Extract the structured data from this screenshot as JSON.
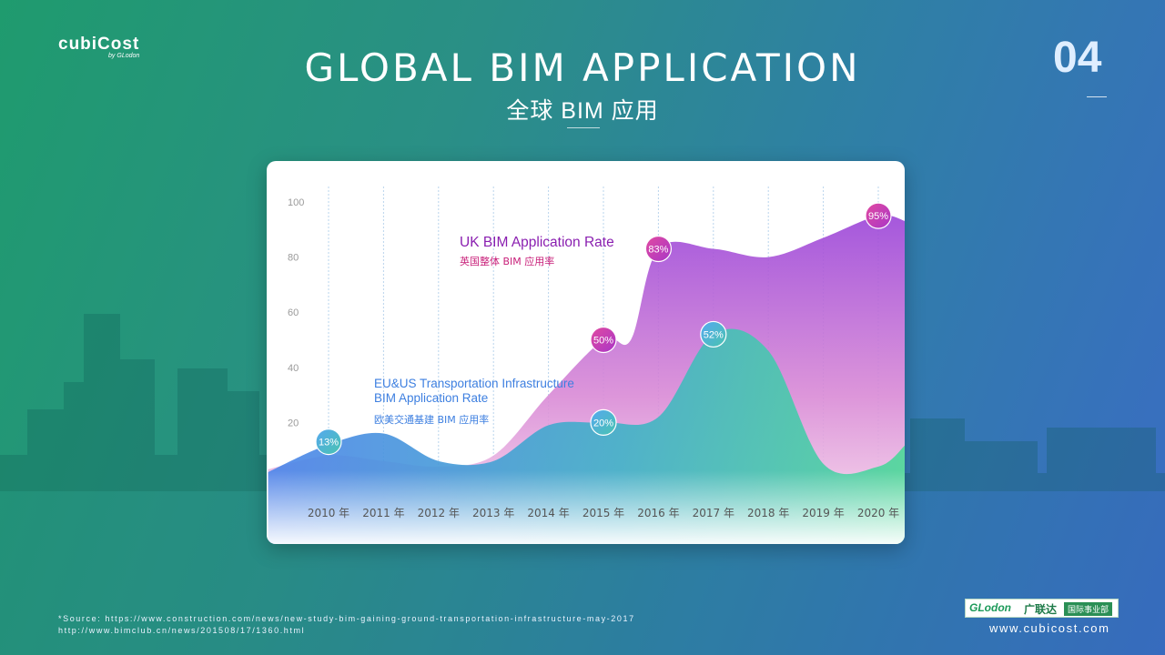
{
  "header": {
    "logo_text": "cubiCost",
    "logo_byline": "by GLodon",
    "title": "GLOBAL BIM APPLICATION",
    "subtitle": "全球 BIM 应用",
    "page_number": "04"
  },
  "chart_data": {
    "type": "area",
    "categories": [
      "2010 年",
      "2011 年",
      "2012 年",
      "2013 年",
      "2014 年",
      "2015 年",
      "2016 年",
      "2017 年",
      "2018 年",
      "2019 年",
      "2020 年"
    ],
    "ylim": [
      0,
      100
    ],
    "y_ticks": [
      "100",
      "80",
      "60",
      "40",
      "20"
    ],
    "series": [
      {
        "name": "UK BIM Application Rate",
        "subtitle": "英国整体 BIM 应用率",
        "color": "#a04cd6",
        "labeled_points": [
          {
            "category": "2015 年",
            "value": 50,
            "label": "50%"
          },
          {
            "category": "2016 年",
            "value": 83,
            "label": "83%"
          },
          {
            "category": "2020 年",
            "value": 95,
            "label": "95%"
          }
        ]
      },
      {
        "name": "EU&US Transportation Infrastructure BIM Application Rate",
        "name_line1": "EU&US Transportation Infrastructure",
        "name_line2": "BIM Application Rate",
        "subtitle": "欧美交通基建 BIM 应用率",
        "color": "#4a8fe8",
        "labeled_points": [
          {
            "category": "2010 年",
            "value": 13,
            "label": "13%"
          },
          {
            "category": "2015 年",
            "value": 20,
            "label": "20%"
          },
          {
            "category": "2017 年",
            "value": 52,
            "label": "52%"
          }
        ]
      }
    ]
  },
  "footer": {
    "source_line1": "*Source: https://www.construction.com/news/new-study-bim-gaining-ground-transportation-infrastructure-may-2017",
    "source_line2": "http://www.bimclub.cn/news/201508/17/1360.html",
    "glodon_brand": "GLodon",
    "glodon_cn": "广联达",
    "glodon_tag": "国际事业部",
    "website": "www.cubicost.com"
  },
  "colors": {
    "bg_left": "#1f9b6e",
    "bg_right": "#3a6cc4",
    "uk_label": "#8a1fb0",
    "eu_label": "#3d7fe0",
    "uk_sub": "#c8207a",
    "eu_sub": "#3d7fe0"
  }
}
